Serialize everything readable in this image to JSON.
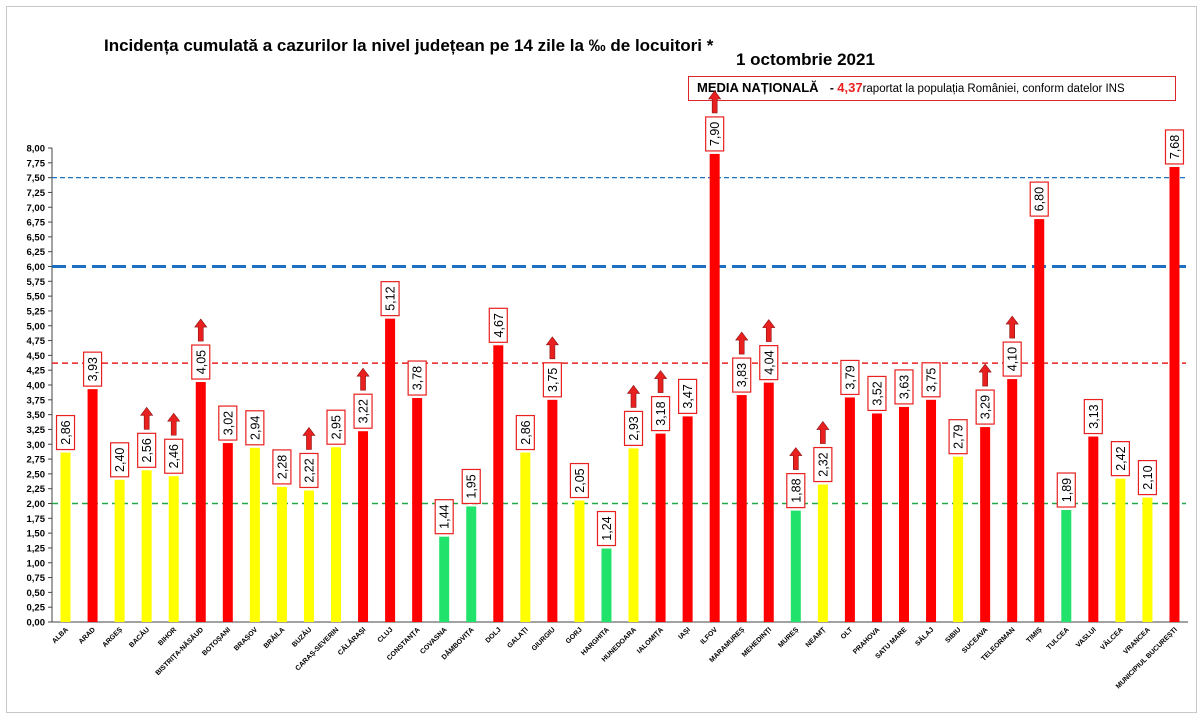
{
  "title": "Incidența cumulată a cazurilor la nivel județean pe 14 zile la ‰ de locuitori *",
  "date": "1 octombrie 2021",
  "media": {
    "label": "MEDIA NAȚIONALĂ",
    "dash": "-",
    "value": "4,37",
    "note": "raportat la populația României, conform datelor INS"
  },
  "colors": {
    "red": "#ff0000",
    "yellow": "#ffff00",
    "green": "#21e26b",
    "threshold_red": "#e8201f",
    "threshold_blue": "#1f6fc2",
    "threshold_green": "#22a84a",
    "arrow": "#e8201f"
  },
  "chart_data": {
    "type": "bar",
    "title": "Incidența cumulată a cazurilor la nivel județean pe 14 zile la ‰ de locuitori *",
    "xlabel": "",
    "ylabel": "",
    "ylim": [
      0,
      8
    ],
    "ytick_step": 0.25,
    "yticks": [
      "0,00",
      "0,25",
      "0,50",
      "0,75",
      "1,00",
      "1,25",
      "1,50",
      "1,75",
      "2,00",
      "2,25",
      "2,50",
      "2,75",
      "3,00",
      "3,25",
      "3,50",
      "3,75",
      "4,00",
      "4,25",
      "4,50",
      "4,75",
      "5,00",
      "5,25",
      "5,50",
      "5,75",
      "6,00",
      "6,25",
      "6,50",
      "6,75",
      "7,00",
      "7,25",
      "7,50",
      "7,75",
      "8,00"
    ],
    "grid": false,
    "legend": "none",
    "categories": [
      "ALBA",
      "ARAD",
      "ARGEȘ",
      "BACĂU",
      "BIHOR",
      "BISTRIȚA-NĂSĂUD",
      "BOTOȘANI",
      "BRAȘOV",
      "BRĂILA",
      "BUZĂU",
      "CARAȘ-SEVERIN",
      "CĂLĂRAȘI",
      "CLUJ",
      "CONSTANȚA",
      "COVASNA",
      "DÂMBOVIȚA",
      "DOLJ",
      "GALAȚI",
      "GIURGIU",
      "GORJ",
      "HARGHITA",
      "HUNEDOARA",
      "IALOMIȚA",
      "IAȘI",
      "ILFOV",
      "MARAMUREȘ",
      "MEHEDINȚI",
      "MUREȘ",
      "NEAMȚ",
      "OLT",
      "PRAHOVA",
      "SATU MARE",
      "SĂLAJ",
      "SIBIU",
      "SUCEAVA",
      "TELEORMAN",
      "TIMIȘ",
      "TULCEA",
      "VASLUI",
      "VÂLCEA",
      "VRANCEA",
      "MUNICIPIUL BUCUREȘTI"
    ],
    "values": [
      2.86,
      3.93,
      2.4,
      2.56,
      2.46,
      4.05,
      3.02,
      2.94,
      2.28,
      2.22,
      2.95,
      3.22,
      5.12,
      3.78,
      1.44,
      1.95,
      4.67,
      2.86,
      3.75,
      2.05,
      1.24,
      2.93,
      3.18,
      3.47,
      7.9,
      3.83,
      4.04,
      1.88,
      2.32,
      3.79,
      3.52,
      3.63,
      3.75,
      2.79,
      3.29,
      4.1,
      6.8,
      1.89,
      3.13,
      2.42,
      2.1,
      7.68
    ],
    "labels": [
      "2,86",
      "3,93",
      "2,40",
      "2,56",
      "2,46",
      "4,05",
      "3,02",
      "2,94",
      "2,28",
      "2,22",
      "2,95",
      "3,22",
      "5,12",
      "3,78",
      "1,44",
      "1,95",
      "4,67",
      "2,86",
      "3,75",
      "2,05",
      "1,24",
      "2,93",
      "3,18",
      "3,47",
      "7,90",
      "3,83",
      "4,04",
      "1,88",
      "2,32",
      "3,79",
      "3,52",
      "3,63",
      "3,75",
      "2,79",
      "3,29",
      "4,10",
      "6,80",
      "1,89",
      "3,13",
      "2,42",
      "2,10",
      "7,68"
    ],
    "colors": [
      "yellow",
      "red",
      "yellow",
      "yellow",
      "yellow",
      "red",
      "red",
      "yellow",
      "yellow",
      "yellow",
      "yellow",
      "red",
      "red",
      "red",
      "green",
      "green",
      "red",
      "yellow",
      "red",
      "yellow",
      "green",
      "yellow",
      "red",
      "red",
      "red",
      "red",
      "red",
      "green",
      "yellow",
      "red",
      "red",
      "red",
      "red",
      "yellow",
      "red",
      "red",
      "red",
      "green",
      "red",
      "yellow",
      "yellow",
      "red"
    ],
    "up_arrows": [
      "BACĂU",
      "BIHOR",
      "BISTRIȚA-NĂSĂUD",
      "BUZĂU",
      "CĂLĂRAȘI",
      "GIURGIU",
      "HUNEDOARA",
      "IALOMIȚA",
      "ILFOV",
      "MARAMUREȘ",
      "MEHEDINȚI",
      "MUREȘ",
      "NEAMȚ",
      "SUCEAVA",
      "TELEORMAN"
    ],
    "reference_lines": [
      {
        "value": 7.5,
        "color": "threshold_blue",
        "style": "dashed-thin"
      },
      {
        "value": 6.0,
        "color": "threshold_blue",
        "style": "dashed-thick"
      },
      {
        "value": 4.37,
        "color": "threshold_red",
        "style": "dashed"
      },
      {
        "value": 2.0,
        "color": "threshold_green",
        "style": "dashed"
      }
    ]
  }
}
